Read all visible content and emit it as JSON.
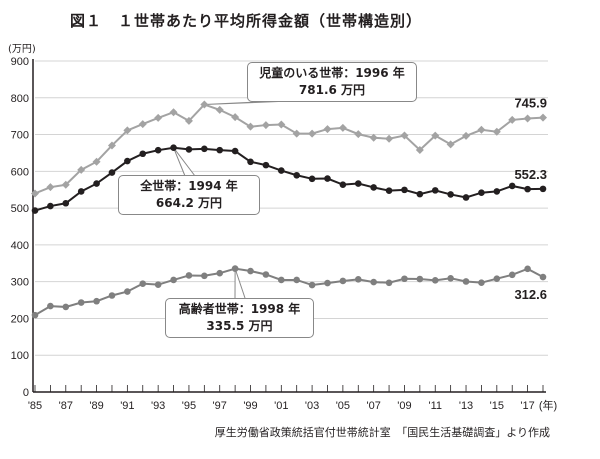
{
  "chart_data": {
    "type": "line",
    "title": "図１　１世帯あたり平均所得金額（世帯構造別）",
    "ylabel": "(万円)",
    "xlabel": "(年)",
    "ylim": [
      0,
      900
    ],
    "yticks": [
      0,
      100,
      200,
      300,
      400,
      500,
      600,
      700,
      800,
      900
    ],
    "x": [
      1985,
      1986,
      1987,
      1988,
      1989,
      1990,
      1991,
      1992,
      1993,
      1994,
      1995,
      1996,
      1997,
      1998,
      1999,
      2000,
      2001,
      2002,
      2003,
      2004,
      2005,
      2006,
      2007,
      2008,
      2009,
      2010,
      2011,
      2012,
      2013,
      2014,
      2015,
      2016,
      2017,
      2018
    ],
    "xtick_labels": [
      "'85",
      "'87",
      "'89",
      "'91",
      "'93",
      "'95",
      "'97",
      "'99",
      "'01",
      "'03",
      "'05",
      "'07",
      "'09",
      "'11",
      "'13",
      "'15",
      "'17"
    ],
    "grid": true,
    "series": [
      {
        "name": "児童のいる世帯",
        "color": "#a3a3a3",
        "marker": "diamond",
        "values": [
          539.8,
          556.9,
          563.5,
          604.1,
          626.2,
          670.4,
          711.2,
          728.5,
          745.3,
          760.7,
          737.2,
          781.6,
          767.1,
          747.4,
          721.4,
          725.8,
          727.2,
          702.7,
          702.6,
          714.9,
          718.0,
          701.2,
          691.4,
          688.5,
          697.3,
          658.1,
          697.0,
          673.2,
          696.3,
          712.9,
          707.6,
          739.8,
          743.6,
          745.9
        ],
        "end_label": "745.9",
        "callout": {
          "line1": "児童のいる世帯：1996 年",
          "line2": "781.6 万円"
        }
      },
      {
        "name": "全世帯",
        "color": "#231f20",
        "marker": "circle",
        "values": [
          493.3,
          505.6,
          513.2,
          545.3,
          566.7,
          596.6,
          628.0,
          647.8,
          657.5,
          664.2,
          659.6,
          661.2,
          657.7,
          655.2,
          626.0,
          616.9,
          602.0,
          589.3,
          579.7,
          580.4,
          563.8,
          566.8,
          556.2,
          547.5,
          549.6,
          538.0,
          548.2,
          537.2,
          528.9,
          541.9,
          545.4,
          560.2,
          551.6,
          552.3
        ],
        "end_label": "552.3",
        "callout": {
          "line1": "全世帯：1994 年",
          "line2": "664.2 万円"
        }
      },
      {
        "name": "高齢者世帯",
        "color": "#7f7f7f",
        "marker": "circle",
        "values": [
          209.0,
          233.6,
          231.3,
          243.3,
          246.8,
          262.4,
          273.1,
          294.6,
          291.9,
          304.6,
          316.9,
          316.0,
          323.1,
          335.5,
          328.9,
          319.5,
          304.6,
          304.6,
          290.9,
          296.1,
          301.9,
          306.3,
          298.9,
          297.0,
          307.9,
          307.2,
          303.6,
          309.1,
          300.5,
          297.3,
          308.1,
          318.6,
          334.9,
          312.6
        ],
        "end_label": "312.6",
        "callout": {
          "line1": "高齢者世帯：1998 年",
          "line2": "335.5 万円"
        }
      }
    ],
    "source": "厚生労働省政策統括官付世帯統計室　「国民生活基礎調査」より作成"
  }
}
